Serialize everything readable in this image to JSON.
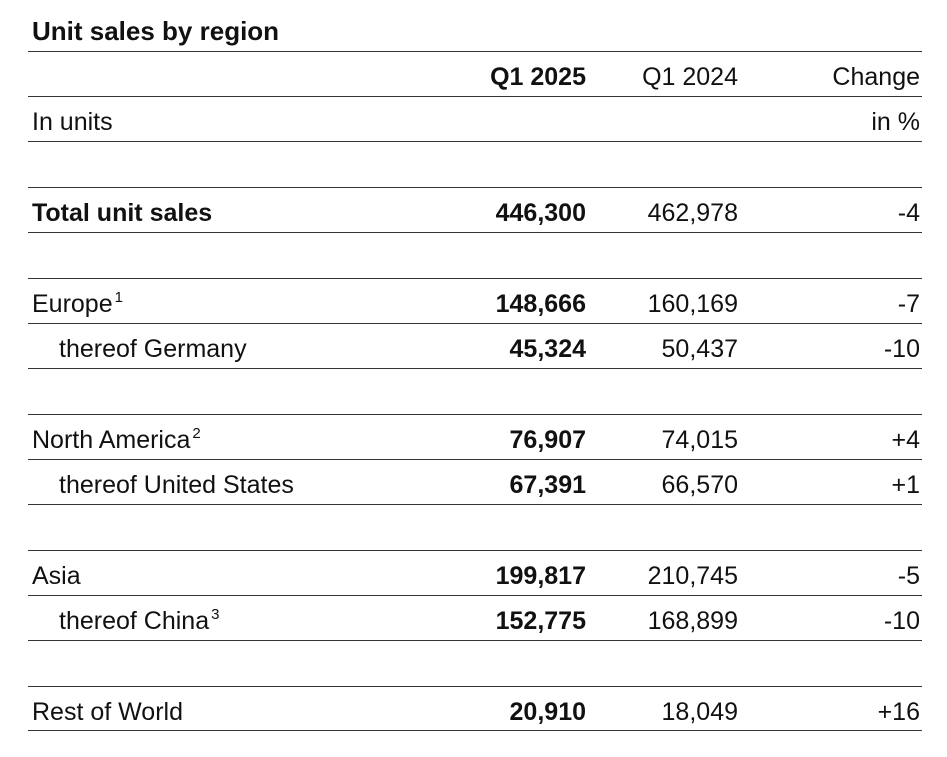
{
  "title": "Unit sales by region",
  "header": {
    "col_current": "Q1 2025",
    "col_prior": "Q1 2024",
    "col_change": "Change",
    "unit_label": "In units",
    "change_unit": "in %"
  },
  "total": {
    "label": "Total unit sales",
    "current": "446,300",
    "prior": "462,978",
    "change": "-4"
  },
  "europe": {
    "label": "Europe",
    "footnote": "1",
    "current": "148,666",
    "prior": "160,169",
    "change": "-7"
  },
  "germany": {
    "label": "thereof Germany",
    "current": "45,324",
    "prior": "50,437",
    "change": "-10"
  },
  "north_america": {
    "label": "North America",
    "footnote": "2",
    "current": "76,907",
    "prior": "74,015",
    "change": "+4"
  },
  "united_states": {
    "label": "thereof United States",
    "current": "67,391",
    "prior": "66,570",
    "change": "+1"
  },
  "asia": {
    "label": "Asia",
    "current": "199,817",
    "prior": "210,745",
    "change": "-5"
  },
  "china": {
    "label": "thereof China",
    "footnote": "3",
    "current": "152,775",
    "prior": "168,899",
    "change": "-10"
  },
  "rest_of_world": {
    "label": "Rest of World",
    "current": "20,910",
    "prior": "18,049",
    "change": "+16"
  }
}
